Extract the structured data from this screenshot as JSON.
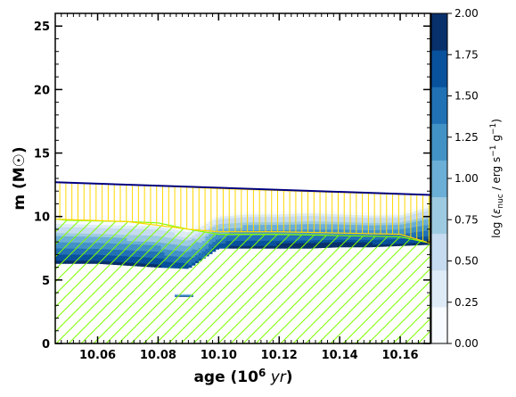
{
  "chart_data": {
    "type": "heatmap",
    "title": "",
    "xlabel": "age (10⁶ yr)",
    "ylabel": "m (M☉)",
    "xlim": [
      10.046,
      10.17
    ],
    "ylim": [
      0,
      26
    ],
    "x_ticks": [
      10.06,
      10.08,
      10.1,
      10.12,
      10.14,
      10.16
    ],
    "x_tick_labels": [
      "10.06",
      "10.08",
      "10.10",
      "10.12",
      "10.14",
      "10.16"
    ],
    "y_ticks": [
      0,
      5,
      10,
      15,
      20,
      25
    ],
    "y_tick_labels": [
      "0",
      "5",
      "10",
      "15",
      "20",
      "25"
    ],
    "colorbar": {
      "label": "log (εnuc / erg s⁻¹ g⁻¹)",
      "range": [
        0,
        2
      ],
      "ticks": [
        0.0,
        0.25,
        0.5,
        0.75,
        1.0,
        1.25,
        1.5,
        1.75,
        2.0
      ],
      "tick_labels": [
        "0.00",
        "0.25",
        "0.50",
        "0.75",
        "1.00",
        "1.25",
        "1.50",
        "1.75",
        "2.00"
      ],
      "colors": [
        "#f7fbff",
        "#deebf7",
        "#c6dbef",
        "#9ecae1",
        "#6baed6",
        "#4292c6",
        "#2171b5",
        "#08519c",
        "#08306b"
      ]
    },
    "stellar_mass_boundary": {
      "color": "#000080",
      "x": [
        10.046,
        10.17
      ],
      "y": [
        12.7,
        11.7
      ]
    },
    "regions": [
      {
        "name": "Convective core",
        "hatch": "diagonal",
        "color": "#7fff00",
        "x": [
          10.046,
          10.05,
          10.07,
          10.08,
          10.09,
          10.1,
          10.12,
          10.14,
          10.16,
          10.17
        ],
        "m_top": [
          9.8,
          9.7,
          9.6,
          9.5,
          9.0,
          8.6,
          8.6,
          8.5,
          8.4,
          7.9
        ],
        "m_bottom": [
          0,
          0,
          0,
          0,
          0,
          0,
          0,
          0,
          0,
          0
        ]
      },
      {
        "name": "Convective envelope",
        "hatch": "vertical",
        "color": "#ffd700",
        "x": [
          10.046,
          10.07,
          10.09,
          10.1,
          10.12,
          10.14,
          10.16,
          10.17
        ],
        "m_top": [
          12.7,
          12.5,
          12.3,
          12.2,
          12.05,
          11.9,
          11.75,
          11.7
        ],
        "m_bottom": [
          9.8,
          9.6,
          9.0,
          8.8,
          8.8,
          8.7,
          8.6,
          7.9
        ]
      }
    ],
    "burning_zones": [
      {
        "name": "main shell",
        "x": [
          10.046,
          10.06,
          10.08,
          10.09,
          10.095,
          10.1,
          10.11,
          10.12,
          10.13,
          10.14,
          10.15,
          10.16,
          10.17
        ],
        "m_lo": [
          6.3,
          6.3,
          6.0,
          5.9,
          6.7,
          7.5,
          7.5,
          7.5,
          7.5,
          7.6,
          7.6,
          7.7,
          7.8
        ],
        "m_hi": [
          9.7,
          9.6,
          9.5,
          9.0,
          9.5,
          10.2,
          10.4,
          10.4,
          10.5,
          10.4,
          10.3,
          10.3,
          11.0
        ],
        "peak": [
          1.9,
          1.9,
          1.85,
          1.7,
          1.6,
          1.8,
          1.9,
          1.95,
          1.95,
          1.95,
          1.95,
          1.9,
          1.95
        ]
      },
      {
        "name": "small blob",
        "x": [
          10.0855,
          10.0915
        ],
        "m_lo": [
          3.7,
          3.7
        ],
        "m_hi": [
          3.95,
          3.95
        ],
        "peak": [
          1.9,
          1.9
        ]
      }
    ]
  }
}
